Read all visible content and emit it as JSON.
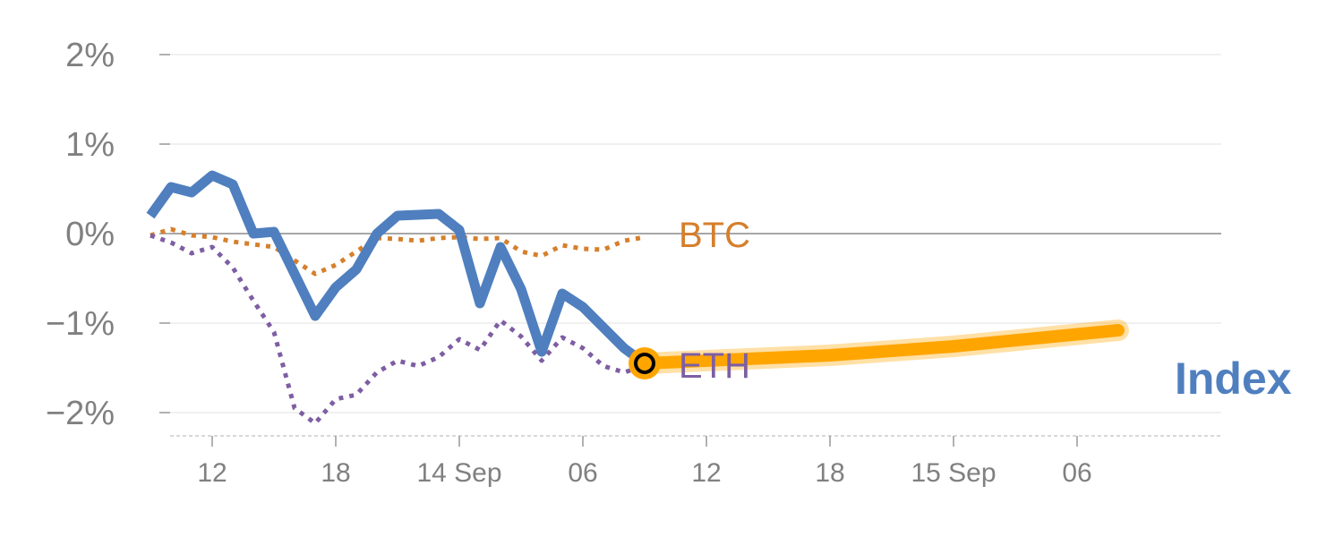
{
  "chart_data": {
    "type": "line",
    "ylim": [
      -2.25,
      2.0
    ],
    "y_ticks": [
      {
        "value": 2,
        "label": "2%"
      },
      {
        "value": 1,
        "label": "1%"
      },
      {
        "value": 0,
        "label": "0%"
      },
      {
        "value": -1,
        "label": "−1%"
      },
      {
        "value": -2,
        "label": "−2%"
      }
    ],
    "x_ticks": [
      {
        "t": 4,
        "label": "12"
      },
      {
        "t": 10,
        "label": "18"
      },
      {
        "t": 16,
        "label": "14 Sep"
      },
      {
        "t": 22,
        "label": "06"
      },
      {
        "t": 28,
        "label": "12"
      },
      {
        "t": 34,
        "label": "18"
      },
      {
        "t": 40,
        "label": "15 Sep"
      },
      {
        "t": 46,
        "label": "06"
      }
    ],
    "grid": true,
    "series": [
      {
        "name": "BTC",
        "color": "#d67f2b",
        "style": "dotted",
        "x": [
          1,
          2,
          3,
          4,
          5,
          6,
          7,
          8,
          9,
          10,
          11,
          12,
          13,
          14,
          15,
          16,
          17,
          18,
          19,
          20,
          21,
          22,
          23,
          24,
          25
        ],
        "values": [
          -0.02,
          0.05,
          -0.02,
          -0.04,
          -0.09,
          -0.12,
          -0.15,
          -0.3,
          -0.45,
          -0.35,
          -0.2,
          -0.05,
          -0.06,
          -0.08,
          -0.05,
          -0.04,
          -0.06,
          -0.05,
          -0.2,
          -0.25,
          -0.13,
          -0.17,
          -0.18,
          -0.08,
          -0.04
        ]
      },
      {
        "name": "ETH",
        "color": "#7e5ea3",
        "style": "dotted",
        "x": [
          1,
          2,
          3,
          4,
          5,
          6,
          7,
          8,
          9,
          10,
          11,
          12,
          13,
          14,
          15,
          16,
          17,
          18,
          19,
          20,
          21,
          22,
          23,
          24,
          25
        ],
        "values": [
          -0.02,
          -0.1,
          -0.22,
          -0.15,
          -0.38,
          -0.75,
          -1.1,
          -1.95,
          -2.12,
          -1.85,
          -1.8,
          -1.55,
          -1.42,
          -1.48,
          -1.38,
          -1.18,
          -1.3,
          -0.97,
          -1.15,
          -1.42,
          -1.16,
          -1.28,
          -1.48,
          -1.55,
          -1.48
        ]
      },
      {
        "name": "Index",
        "color": "#4f7fbf",
        "style": "solid",
        "x": [
          1,
          2,
          3,
          4,
          5,
          6,
          7,
          8,
          9,
          10,
          11,
          12,
          13,
          14,
          15,
          16,
          17,
          18,
          19,
          20,
          21,
          22,
          23,
          24,
          25
        ],
        "values": [
          0.2,
          0.52,
          0.46,
          0.65,
          0.55,
          0.0,
          0.02,
          -0.45,
          -0.92,
          -0.6,
          -0.4,
          0.0,
          0.2,
          0.21,
          0.22,
          0.04,
          -0.78,
          -0.15,
          -0.62,
          -1.32,
          -0.67,
          -0.82,
          -1.05,
          -1.28,
          -1.45
        ]
      }
    ],
    "forecast": {
      "color": "#ffa500",
      "x": [
        25,
        34,
        40,
        48
      ],
      "values": [
        -1.45,
        -1.36,
        -1.26,
        -1.08
      ]
    },
    "labels": {
      "btc": "BTC",
      "eth": "ETH",
      "index": "Index"
    }
  }
}
